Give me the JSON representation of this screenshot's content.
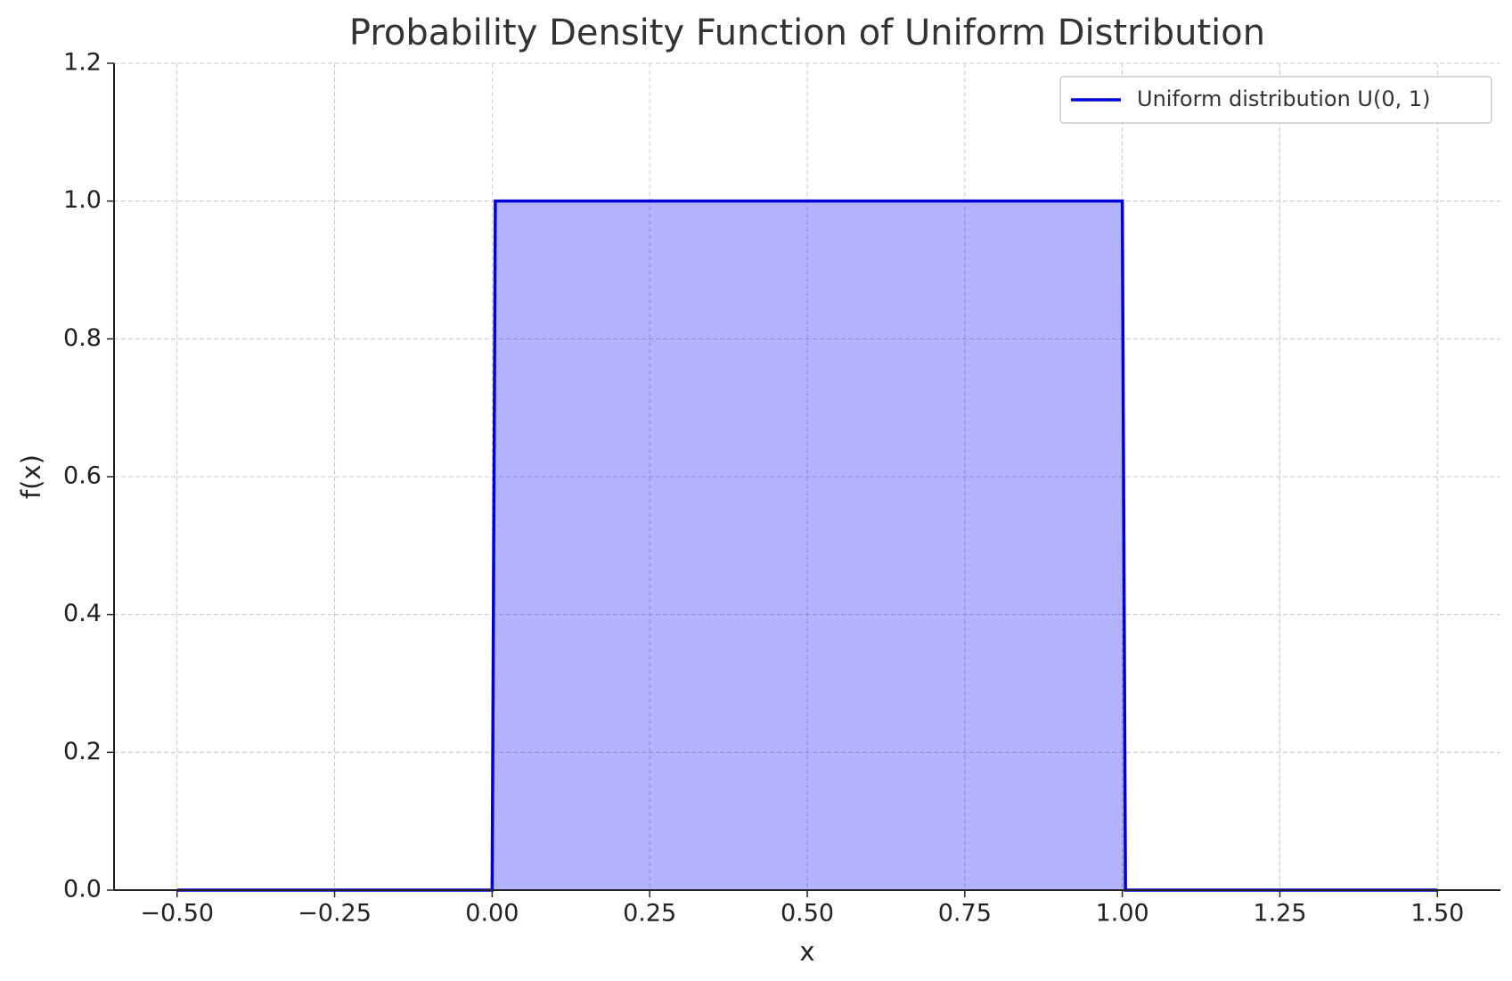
{
  "chart_data": {
    "type": "line",
    "title": "Probability Density Function of Uniform Distribution",
    "x_label": "x",
    "y_label": "f(x)",
    "x": [
      -0.5,
      0,
      0.005,
      1,
      1.005,
      1.5
    ],
    "series": [
      {
        "name": "Uniform distribution U(0, 1)",
        "color": "#0000dd",
        "fill_color": "#0000ff",
        "fill_opacity": 0.3,
        "values": [
          0,
          0,
          1,
          1,
          0,
          0
        ]
      }
    ],
    "xlim": [
      -0.6,
      1.6
    ],
    "ylim": [
      0,
      1.2
    ],
    "xticks": [
      {
        "value": -0.5,
        "label": "−0.50"
      },
      {
        "value": -0.25,
        "label": "−0.25"
      },
      {
        "value": 0,
        "label": "0.00"
      },
      {
        "value": 0.25,
        "label": "0.25"
      },
      {
        "value": 0.5,
        "label": "0.50"
      },
      {
        "value": 0.75,
        "label": "0.75"
      },
      {
        "value": 1,
        "label": "1.00"
      },
      {
        "value": 1.25,
        "label": "1.25"
      },
      {
        "value": 1.5,
        "label": "1.50"
      }
    ],
    "yticks": [
      {
        "value": 0,
        "label": "0.0"
      },
      {
        "value": 0.2,
        "label": "0.2"
      },
      {
        "value": 0.4,
        "label": "0.4"
      },
      {
        "value": 0.6,
        "label": "0.6"
      },
      {
        "value": 0.8,
        "label": "0.8"
      },
      {
        "value": 1,
        "label": "1.0"
      },
      {
        "value": 1.2,
        "label": "1.2"
      }
    ],
    "grid": true,
    "legend": "upper right"
  }
}
